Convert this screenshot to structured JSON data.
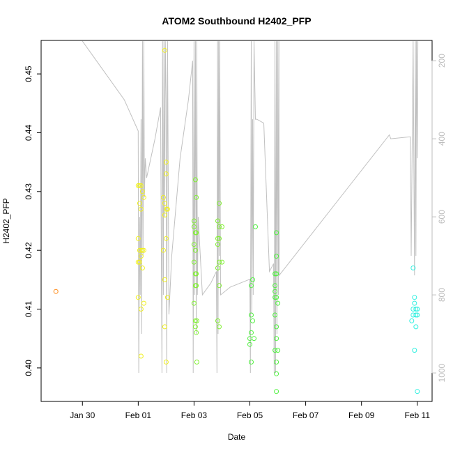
{
  "chart_data": {
    "type": "scatter",
    "title": "ATOM2 Southbound H2402_PFP",
    "xlabel": "Date",
    "ylabel": "H2402_PFP",
    "x_ticks": [
      "Jan 30",
      "Feb 01",
      "Feb 03",
      "Feb 05",
      "Feb 07",
      "Feb 09",
      "Feb 11"
    ],
    "x_tick_values": [
      1.0,
      3.0,
      5.0,
      7.0,
      9.0,
      11.0,
      13.0
    ],
    "xlim": [
      -0.48,
      13.53
    ],
    "y_ticks": [
      "0.40",
      "0.41",
      "0.42",
      "0.43",
      "0.44",
      "0.45"
    ],
    "y_tick_values": [
      0.4,
      0.41,
      0.42,
      0.43,
      0.44,
      0.45
    ],
    "ylim": [
      0.3943,
      0.4557
    ],
    "right_axis": {
      "ticks": [
        "200",
        "400",
        "600",
        "800",
        "1000"
      ],
      "tick_values": [
        200,
        400,
        600,
        800,
        1000
      ],
      "lim": [
        148,
        1073
      ],
      "color": "#bdbdbd"
    },
    "colors": {
      "orange": "#ff8c1a",
      "yellow": "#f0f020",
      "yellow_green": "#c8f028",
      "green": "#80f030",
      "bright_green": "#50f040",
      "cyan": "#30f0e0",
      "line": "#c0c0c0"
    },
    "series": [
      {
        "color_key": "orange",
        "points": [
          [
            0.05,
            0.413
          ]
        ]
      },
      {
        "color_key": "yellow",
        "points": [
          [
            3.0,
            0.431
          ],
          [
            3.05,
            0.431
          ],
          [
            3.1,
            0.431
          ],
          [
            3.15,
            0.43
          ],
          [
            3.05,
            0.428
          ],
          [
            3.1,
            0.427
          ],
          [
            3.2,
            0.429
          ],
          [
            3.0,
            0.422
          ],
          [
            3.05,
            0.42
          ],
          [
            3.1,
            0.42
          ],
          [
            3.15,
            0.42
          ],
          [
            3.2,
            0.42
          ],
          [
            3.0,
            0.418
          ],
          [
            3.05,
            0.418
          ],
          [
            3.1,
            0.419
          ],
          [
            3.15,
            0.417
          ],
          [
            3.0,
            0.412
          ],
          [
            3.1,
            0.41
          ],
          [
            3.2,
            0.411
          ],
          [
            3.1,
            0.402
          ],
          [
            3.95,
            0.454
          ],
          [
            4.0,
            0.435
          ],
          [
            4.0,
            0.433
          ],
          [
            3.9,
            0.429
          ],
          [
            3.95,
            0.428
          ],
          [
            4.0,
            0.427
          ],
          [
            4.05,
            0.427
          ],
          [
            3.95,
            0.426
          ],
          [
            4.0,
            0.422
          ],
          [
            3.9,
            0.42
          ],
          [
            3.95,
            0.415
          ],
          [
            4.05,
            0.412
          ],
          [
            3.95,
            0.407
          ],
          [
            4.0,
            0.401
          ]
        ]
      },
      {
        "color_key": "green",
        "points": [
          [
            5.05,
            0.432
          ],
          [
            5.08,
            0.429
          ],
          [
            5.0,
            0.425
          ],
          [
            5.0,
            0.424
          ],
          [
            5.05,
            0.423
          ],
          [
            5.08,
            0.423
          ],
          [
            5.0,
            0.421
          ],
          [
            5.05,
            0.42
          ],
          [
            5.0,
            0.418
          ],
          [
            5.05,
            0.416
          ],
          [
            5.08,
            0.416
          ],
          [
            5.05,
            0.414
          ],
          [
            5.08,
            0.414
          ],
          [
            5.0,
            0.411
          ],
          [
            5.05,
            0.408
          ],
          [
            5.1,
            0.408
          ],
          [
            5.05,
            0.407
          ],
          [
            5.08,
            0.406
          ],
          [
            5.1,
            0.401
          ],
          [
            5.9,
            0.428
          ],
          [
            5.85,
            0.425
          ],
          [
            5.9,
            0.424
          ],
          [
            6.0,
            0.424
          ],
          [
            5.85,
            0.422
          ],
          [
            5.9,
            0.422
          ],
          [
            5.85,
            0.421
          ],
          [
            5.9,
            0.418
          ],
          [
            6.0,
            0.418
          ],
          [
            5.85,
            0.417
          ],
          [
            5.9,
            0.414
          ],
          [
            5.85,
            0.408
          ],
          [
            5.9,
            0.407
          ]
        ]
      },
      {
        "color_key": "bright_green",
        "points": [
          [
            7.05,
            0.414
          ],
          [
            7.1,
            0.415
          ],
          [
            7.05,
            0.409
          ],
          [
            7.1,
            0.408
          ],
          [
            7.05,
            0.406
          ],
          [
            7.0,
            0.405
          ],
          [
            7.15,
            0.405
          ],
          [
            7.0,
            0.404
          ],
          [
            7.05,
            0.401
          ],
          [
            7.2,
            0.424
          ],
          [
            7.95,
            0.423
          ],
          [
            7.95,
            0.419
          ],
          [
            7.9,
            0.416
          ],
          [
            7.95,
            0.416
          ],
          [
            7.9,
            0.414
          ],
          [
            7.9,
            0.413
          ],
          [
            7.9,
            0.412
          ],
          [
            7.95,
            0.412
          ],
          [
            8.0,
            0.411
          ],
          [
            7.9,
            0.409
          ],
          [
            7.95,
            0.407
          ],
          [
            7.95,
            0.405
          ],
          [
            7.9,
            0.403
          ],
          [
            8.0,
            0.403
          ],
          [
            7.95,
            0.401
          ],
          [
            7.95,
            0.399
          ],
          [
            7.95,
            0.396
          ]
        ]
      },
      {
        "color_key": "cyan",
        "points": [
          [
            12.85,
            0.417
          ],
          [
            12.9,
            0.412
          ],
          [
            12.9,
            0.411
          ],
          [
            12.85,
            0.41
          ],
          [
            12.95,
            0.41
          ],
          [
            13.0,
            0.41
          ],
          [
            12.85,
            0.409
          ],
          [
            12.95,
            0.409
          ],
          [
            13.0,
            0.409
          ],
          [
            12.8,
            0.408
          ],
          [
            12.95,
            0.407
          ],
          [
            12.9,
            0.403
          ],
          [
            13.0,
            0.396
          ]
        ]
      }
    ],
    "depth_line": [
      [
        1.0,
        150
      ],
      [
        1.5,
        200
      ],
      [
        2.0,
        250
      ],
      [
        2.5,
        300
      ],
      [
        3.0,
        380
      ],
      [
        3.02,
        1000
      ],
      [
        3.05,
        600
      ],
      [
        3.07,
        800
      ],
      [
        3.1,
        350
      ],
      [
        3.12,
        900
      ],
      [
        3.15,
        150
      ],
      [
        3.17,
        700
      ],
      [
        3.2,
        150
      ],
      [
        3.22,
        550
      ],
      [
        3.25,
        450
      ],
      [
        3.3,
        500
      ],
      [
        3.6,
        400
      ],
      [
        3.8,
        320
      ],
      [
        3.85,
        1000
      ],
      [
        3.87,
        150
      ],
      [
        3.9,
        800
      ],
      [
        3.92,
        150
      ],
      [
        3.95,
        600
      ],
      [
        3.97,
        150
      ],
      [
        4.0,
        300
      ],
      [
        4.02,
        1000
      ],
      [
        4.05,
        150
      ],
      [
        4.1,
        850
      ],
      [
        4.2,
        700
      ],
      [
        4.5,
        450
      ],
      [
        4.8,
        300
      ],
      [
        4.95,
        200
      ],
      [
        4.97,
        1000
      ],
      [
        5.0,
        150
      ],
      [
        5.02,
        800
      ],
      [
        5.05,
        150
      ],
      [
        5.08,
        900
      ],
      [
        5.1,
        150
      ],
      [
        5.12,
        800
      ],
      [
        5.15,
        600
      ],
      [
        5.3,
        800
      ],
      [
        5.6,
        770
      ],
      [
        5.8,
        740
      ],
      [
        5.82,
        1000
      ],
      [
        5.84,
        150
      ],
      [
        5.86,
        900
      ],
      [
        5.88,
        150
      ],
      [
        5.9,
        700
      ],
      [
        5.92,
        150
      ],
      [
        5.95,
        800
      ],
      [
        6.3,
        780
      ],
      [
        7.0,
        760
      ],
      [
        7.02,
        1000
      ],
      [
        7.05,
        150
      ],
      [
        7.07,
        850
      ],
      [
        7.1,
        350
      ],
      [
        7.12,
        800
      ],
      [
        7.15,
        150
      ],
      [
        7.2,
        350
      ],
      [
        7.25,
        350
      ],
      [
        7.5,
        360
      ],
      [
        7.7,
        740
      ],
      [
        7.85,
        720
      ],
      [
        7.87,
        1000
      ],
      [
        7.9,
        150
      ],
      [
        7.92,
        1000
      ],
      [
        7.95,
        150
      ],
      [
        7.97,
        900
      ],
      [
        8.0,
        150
      ],
      [
        8.02,
        800
      ],
      [
        8.04,
        150
      ],
      [
        8.05,
        750
      ],
      [
        12.0,
        390
      ],
      [
        12.05,
        400
      ],
      [
        12.75,
        395
      ],
      [
        12.78,
        700
      ],
      [
        12.85,
        150
      ],
      [
        12.9,
        750
      ],
      [
        12.93,
        150
      ],
      [
        12.95,
        700
      ],
      [
        12.97,
        150
      ],
      [
        13.0,
        450
      ],
      [
        13.02,
        150
      ]
    ]
  }
}
